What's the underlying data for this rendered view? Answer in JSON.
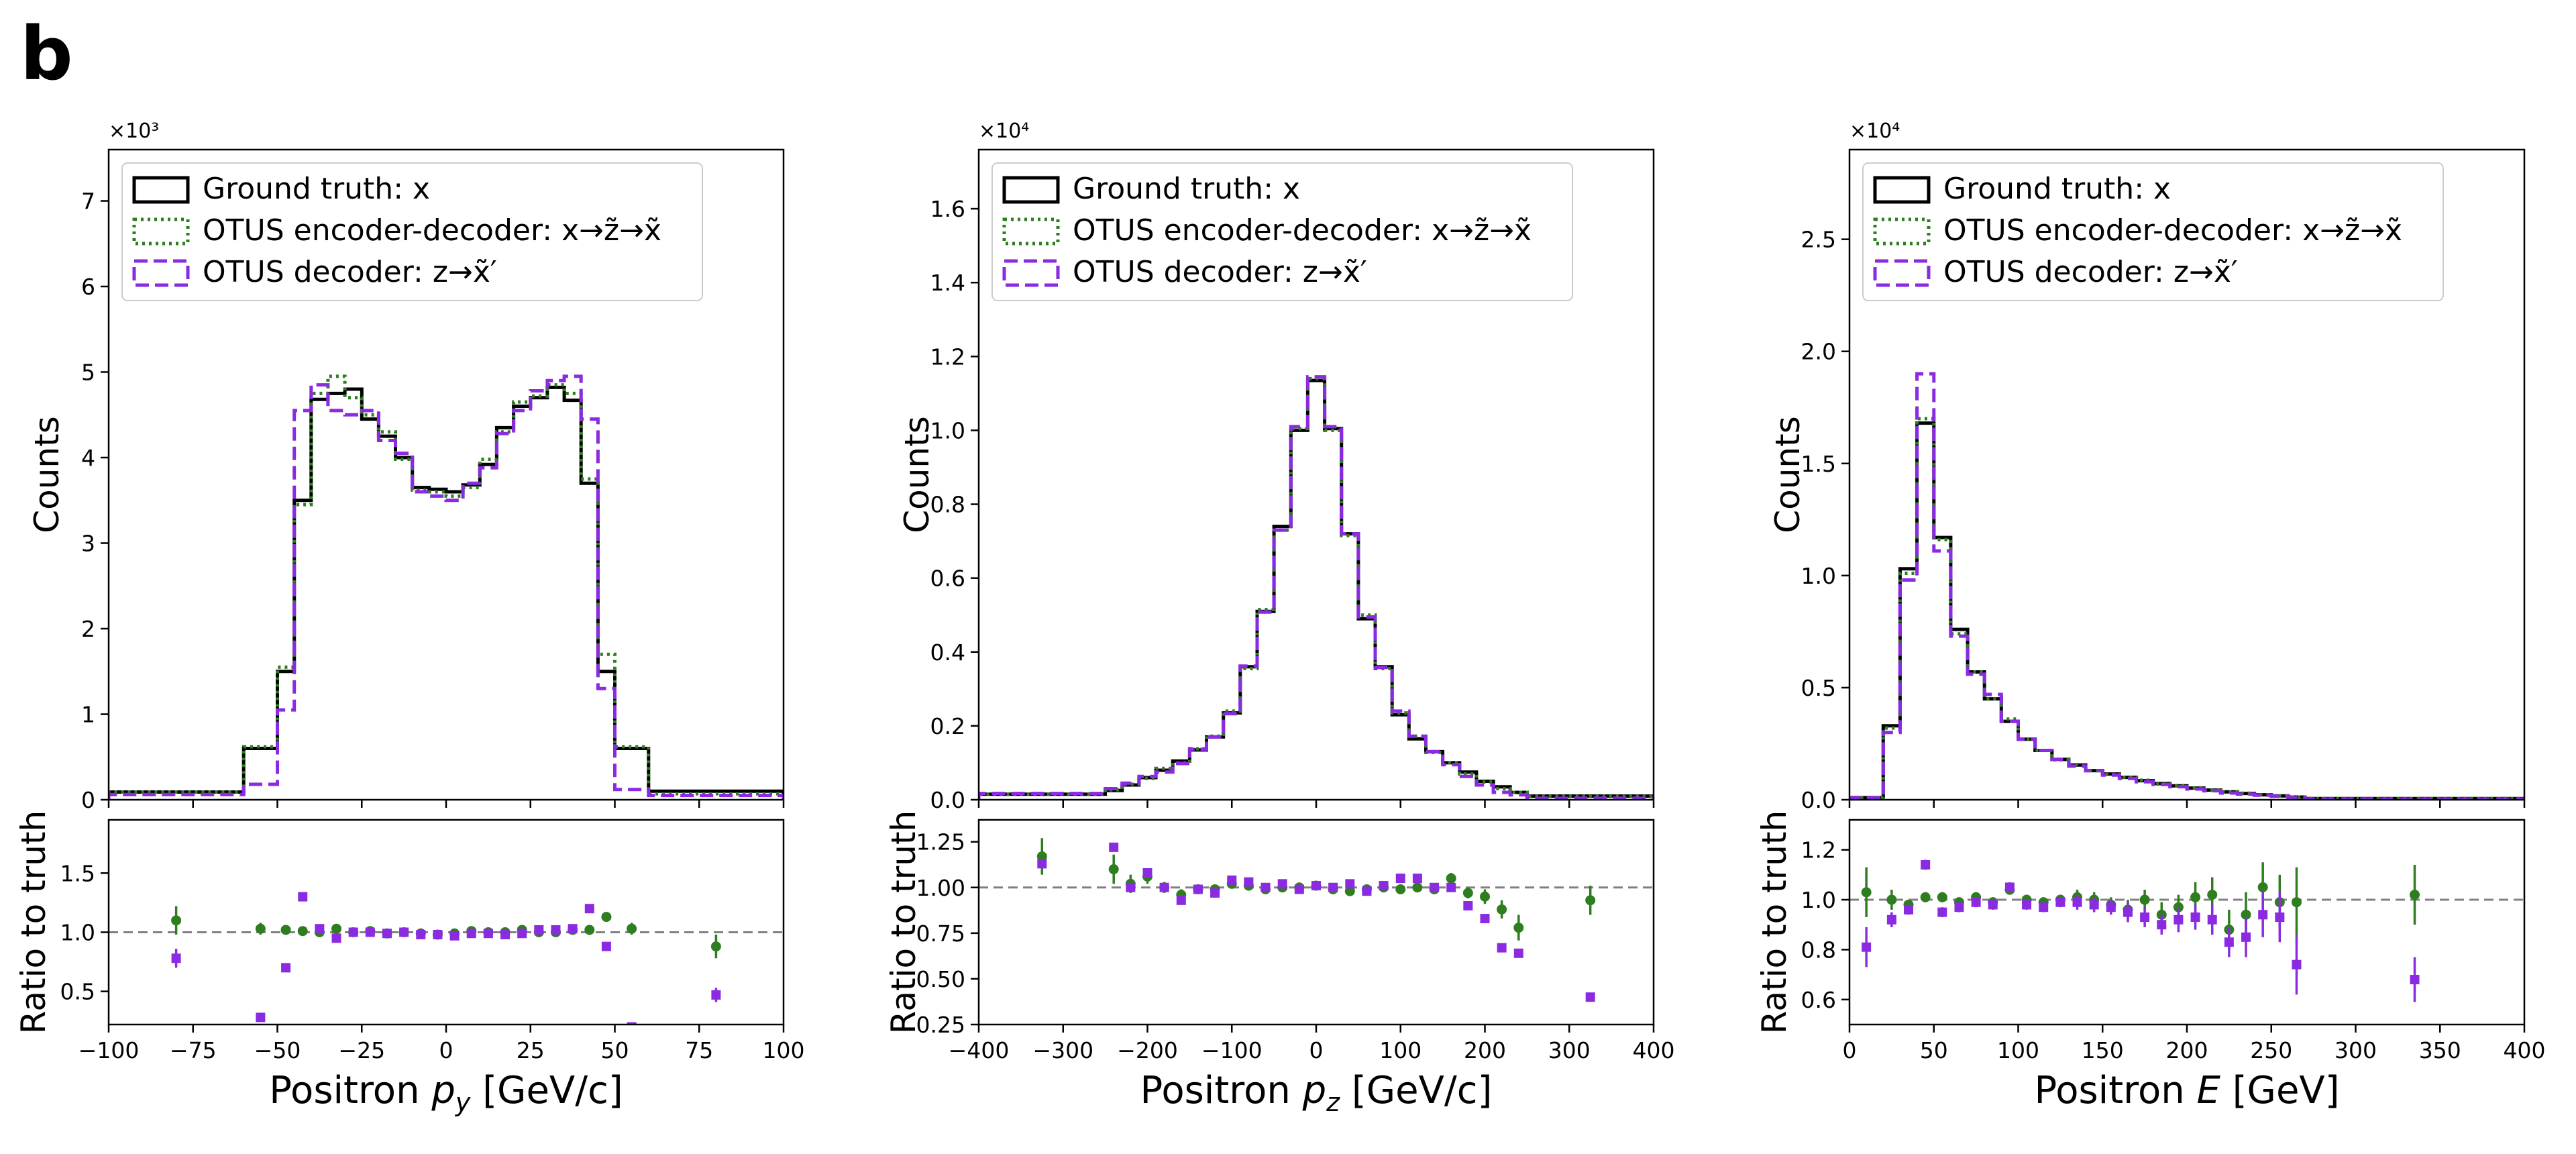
{
  "figure": {
    "panel_letter": "b"
  },
  "legend": {
    "truth": "Ground truth: x",
    "encdec": "OTUS encoder-decoder: x→z̃→x̃",
    "dec": "OTUS decoder: z→x̃′"
  },
  "colors": {
    "truth": "#000000",
    "encdec": "#2e7d1f",
    "dec": "#8a2be2",
    "ref": "#808080"
  },
  "chart_data": [
    {
      "type": "histogram-with-ratio",
      "xlabel": "Positron p_y [GeV/c]",
      "ylabel": "Counts",
      "ratio_ylabel": "Ratio to truth",
      "multiplier": "×10³",
      "xlim": [
        -100,
        100
      ],
      "ylim": [
        0,
        7.6
      ],
      "ratio_ylim": [
        0.22,
        1.95
      ],
      "xticks": [
        -100,
        -75,
        -50,
        -25,
        0,
        25,
        50,
        75,
        100
      ],
      "xtick_labels": [
        "−100",
        "−75",
        "−50",
        "−25",
        "0",
        "25",
        "50",
        "75",
        "100"
      ],
      "yticks": [
        0,
        1,
        2,
        3,
        4,
        5,
        6,
        7
      ],
      "ytick_labels": [
        "0",
        "1",
        "2",
        "3",
        "4",
        "5",
        "6",
        "7"
      ],
      "ratio_yticks": [
        0.5,
        1.0,
        1.5
      ],
      "ratio_ytick_labels": [
        "0.5",
        "1.0",
        "1.5"
      ],
      "edges": [
        -100,
        -60,
        -50,
        -45,
        -40,
        -35,
        -30,
        -25,
        -20,
        -15,
        -10,
        -5,
        0,
        5,
        10,
        15,
        20,
        25,
        30,
        35,
        40,
        45,
        50,
        60,
        100
      ],
      "series": [
        {
          "name": "truth",
          "values": [
            0.09,
            0.6,
            1.5,
            3.5,
            4.68,
            4.75,
            4.8,
            4.45,
            4.25,
            4.0,
            3.65,
            3.63,
            3.6,
            3.68,
            3.92,
            4.35,
            4.6,
            4.7,
            4.82,
            4.67,
            3.7,
            1.5,
            0.6,
            0.1
          ]
        },
        {
          "name": "encdec",
          "values": [
            0.09,
            0.62,
            1.55,
            3.45,
            4.75,
            4.95,
            4.7,
            4.5,
            4.3,
            3.98,
            3.62,
            3.6,
            3.55,
            3.65,
            3.98,
            4.3,
            4.65,
            4.72,
            4.85,
            4.75,
            3.75,
            1.7,
            0.62,
            0.07
          ]
        },
        {
          "name": "dec",
          "values": [
            0.06,
            0.18,
            1.05,
            4.55,
            4.85,
            4.55,
            4.5,
            4.55,
            4.2,
            4.05,
            3.6,
            3.55,
            3.5,
            3.7,
            3.88,
            4.28,
            4.55,
            4.78,
            4.9,
            4.95,
            4.45,
            1.3,
            0.12,
            0.05
          ]
        }
      ],
      "ratio_x": [
        -80,
        -55,
        -47.5,
        -42.5,
        -37.5,
        -32.5,
        -27.5,
        -22.5,
        -17.5,
        -12.5,
        -7.5,
        -2.5,
        2.5,
        7.5,
        12.5,
        17.5,
        22.5,
        27.5,
        32.5,
        37.5,
        42.5,
        47.5,
        55,
        80
      ],
      "ratio_encdec": [
        1.1,
        1.03,
        1.02,
        1.01,
        1.0,
        1.03,
        1.0,
        1.01,
        0.99,
        1.0,
        0.99,
        0.98,
        0.99,
        1.01,
        1.0,
        1.0,
        1.02,
        1.0,
        1.0,
        1.02,
        1.02,
        1.13,
        1.03,
        0.88
      ],
      "ratio_encdec_err": [
        0.12,
        0.05,
        0.03,
        0.02,
        0.02,
        0.02,
        0.02,
        0.02,
        0.02,
        0.02,
        0.02,
        0.02,
        0.02,
        0.02,
        0.02,
        0.02,
        0.02,
        0.02,
        0.02,
        0.02,
        0.02,
        0.03,
        0.05,
        0.1
      ],
      "ratio_dec": [
        0.78,
        0.28,
        0.7,
        1.3,
        1.03,
        0.95,
        1.0,
        1.0,
        0.99,
        1.0,
        0.98,
        0.98,
        0.97,
        0.99,
        0.99,
        0.98,
        0.99,
        1.02,
        1.02,
        1.03,
        1.2,
        0.88,
        0.2,
        0.47
      ],
      "ratio_dec_err": [
        0.08,
        0.03,
        0.03,
        0.02,
        0.02,
        0.02,
        0.02,
        0.02,
        0.02,
        0.02,
        0.02,
        0.02,
        0.02,
        0.02,
        0.02,
        0.02,
        0.02,
        0.02,
        0.02,
        0.02,
        0.02,
        0.03,
        0.03,
        0.06
      ]
    },
    {
      "type": "histogram-with-ratio",
      "xlabel": "Positron p_z [GeV/c]",
      "ylabel": "Counts",
      "ratio_ylabel": "Ratio to truth",
      "multiplier": "×10⁴",
      "xlim": [
        -400,
        400
      ],
      "ylim": [
        0,
        1.76
      ],
      "ratio_ylim": [
        0.25,
        1.37
      ],
      "xticks": [
        -400,
        -300,
        -200,
        -100,
        0,
        100,
        200,
        300,
        400
      ],
      "xtick_labels": [
        "−400",
        "−300",
        "−200",
        "−100",
        "0",
        "100",
        "200",
        "300",
        "400"
      ],
      "yticks": [
        0,
        0.2,
        0.4,
        0.6,
        0.8,
        1.0,
        1.2,
        1.4,
        1.6
      ],
      "ytick_labels": [
        "0.0",
        "0.2",
        "0.4",
        "0.6",
        "0.8",
        "1.0",
        "1.2",
        "1.4",
        "1.6"
      ],
      "ratio_yticks": [
        0.25,
        0.5,
        0.75,
        1.0,
        1.25
      ],
      "ratio_ytick_labels": [
        "0.25",
        "0.50",
        "0.75",
        "1.00",
        "1.25"
      ],
      "edges": [
        -400,
        -250,
        -230,
        -210,
        -190,
        -170,
        -150,
        -130,
        -110,
        -90,
        -70,
        -50,
        -30,
        -10,
        10,
        30,
        50,
        70,
        90,
        110,
        130,
        150,
        170,
        190,
        210,
        230,
        250,
        400
      ],
      "series": [
        {
          "name": "truth",
          "values": [
            0.015,
            0.025,
            0.04,
            0.06,
            0.08,
            0.105,
            0.135,
            0.17,
            0.235,
            0.36,
            0.51,
            0.74,
            1.0,
            1.135,
            1.005,
            0.72,
            0.49,
            0.36,
            0.23,
            0.165,
            0.13,
            0.1,
            0.075,
            0.05,
            0.035,
            0.02,
            0.01
          ]
        },
        {
          "name": "encdec",
          "values": [
            0.015,
            0.027,
            0.042,
            0.058,
            0.085,
            0.1,
            0.138,
            0.172,
            0.24,
            0.355,
            0.515,
            0.73,
            1.005,
            1.14,
            1.0,
            0.715,
            0.5,
            0.355,
            0.235,
            0.172,
            0.128,
            0.1,
            0.07,
            0.048,
            0.03,
            0.02,
            0.009
          ]
        },
        {
          "name": "dec",
          "values": [
            0.017,
            0.03,
            0.045,
            0.063,
            0.075,
            0.098,
            0.137,
            0.17,
            0.233,
            0.362,
            0.508,
            0.73,
            1.01,
            1.145,
            1.01,
            0.72,
            0.495,
            0.358,
            0.24,
            0.172,
            0.13,
            0.095,
            0.063,
            0.04,
            0.02,
            0.013,
            0.004
          ]
        }
      ],
      "ratio_x": [
        -325,
        -240,
        -220,
        -200,
        -180,
        -160,
        -140,
        -120,
        -100,
        -80,
        -60,
        -40,
        -20,
        0,
        20,
        40,
        60,
        80,
        100,
        120,
        140,
        160,
        180,
        200,
        220,
        240,
        325
      ],
      "ratio_encdec": [
        1.17,
        1.1,
        1.02,
        1.06,
        1.0,
        0.96,
        0.99,
        0.99,
        1.02,
        1.01,
        0.99,
        1.0,
        1.0,
        1.01,
        0.99,
        0.98,
        0.99,
        1.0,
        0.99,
        1.0,
        0.99,
        1.05,
        0.97,
        0.95,
        0.88,
        0.78,
        0.93
      ],
      "ratio_encdec_err": [
        0.1,
        0.08,
        0.05,
        0.04,
        0.03,
        0.03,
        0.02,
        0.02,
        0.02,
        0.02,
        0.02,
        0.02,
        0.02,
        0.02,
        0.02,
        0.02,
        0.02,
        0.02,
        0.02,
        0.02,
        0.02,
        0.03,
        0.03,
        0.04,
        0.05,
        0.07,
        0.08
      ],
      "ratio_dec": [
        1.13,
        1.22,
        1.0,
        1.08,
        1.0,
        0.93,
        0.99,
        0.97,
        1.04,
        1.03,
        1.0,
        1.02,
        0.99,
        1.01,
        1.0,
        1.02,
        0.98,
        1.01,
        1.05,
        1.05,
        1.0,
        1.0,
        0.9,
        0.83,
        0.67,
        0.64,
        0.4
      ]
    },
    {
      "type": "histogram-with-ratio",
      "xlabel": "Positron E [GeV]",
      "ylabel": "Counts",
      "ratio_ylabel": "Ratio to truth",
      "multiplier": "×10⁴",
      "xlim": [
        0,
        400
      ],
      "ylim": [
        0,
        2.9
      ],
      "ratio_ylim": [
        0.5,
        1.32
      ],
      "xticks": [
        0,
        50,
        100,
        150,
        200,
        250,
        300,
        350,
        400
      ],
      "xtick_labels": [
        "0",
        "50",
        "100",
        "150",
        "200",
        "250",
        "300",
        "350",
        "400"
      ],
      "yticks": [
        0,
        0.5,
        1.0,
        1.5,
        2.0,
        2.5
      ],
      "ytick_labels": [
        "0.0",
        "0.5",
        "1.0",
        "1.5",
        "2.0",
        "2.5"
      ],
      "ratio_yticks": [
        0.6,
        0.8,
        1.0,
        1.2
      ],
      "ratio_ytick_labels": [
        "0.6",
        "0.8",
        "1.0",
        "1.2"
      ],
      "edges": [
        0,
        20,
        30,
        40,
        50,
        60,
        70,
        80,
        90,
        100,
        110,
        120,
        130,
        140,
        150,
        160,
        170,
        180,
        190,
        200,
        210,
        220,
        230,
        240,
        250,
        260,
        270,
        400
      ],
      "series": [
        {
          "name": "truth",
          "values": [
            0.01,
            0.33,
            1.03,
            1.68,
            1.17,
            0.76,
            0.57,
            0.45,
            0.35,
            0.27,
            0.22,
            0.18,
            0.155,
            0.13,
            0.115,
            0.1,
            0.085,
            0.072,
            0.062,
            0.052,
            0.043,
            0.035,
            0.028,
            0.022,
            0.017,
            0.012,
            0.005
          ]
        },
        {
          "name": "encdec",
          "values": [
            0.01,
            0.32,
            1.01,
            1.7,
            1.16,
            0.74,
            0.57,
            0.45,
            0.36,
            0.27,
            0.22,
            0.178,
            0.157,
            0.13,
            0.113,
            0.1,
            0.087,
            0.07,
            0.063,
            0.053,
            0.042,
            0.034,
            0.029,
            0.022,
            0.017,
            0.012,
            0.005
          ]
        },
        {
          "name": "dec",
          "values": [
            0.01,
            0.3,
            0.98,
            1.9,
            1.11,
            0.73,
            0.56,
            0.47,
            0.35,
            0.27,
            0.22,
            0.18,
            0.15,
            0.13,
            0.11,
            0.095,
            0.08,
            0.068,
            0.058,
            0.048,
            0.04,
            0.03,
            0.025,
            0.02,
            0.016,
            0.009,
            0.003
          ]
        }
      ],
      "ratio_x": [
        10,
        25,
        35,
        45,
        55,
        65,
        75,
        85,
        95,
        105,
        115,
        125,
        135,
        145,
        155,
        165,
        175,
        185,
        195,
        205,
        215,
        225,
        235,
        245,
        255,
        265,
        335
      ],
      "ratio_encdec": [
        1.03,
        1.0,
        0.98,
        1.01,
        1.01,
        0.99,
        1.01,
        0.99,
        1.04,
        1.0,
        0.99,
        1.0,
        1.01,
        1.0,
        0.98,
        0.96,
        1.0,
        0.94,
        0.97,
        1.01,
        1.02,
        0.88,
        0.94,
        1.05,
        0.99,
        0.99,
        1.02
      ],
      "ratio_encdec_err": [
        0.1,
        0.04,
        0.02,
        0.02,
        0.02,
        0.02,
        0.02,
        0.02,
        0.02,
        0.02,
        0.02,
        0.02,
        0.03,
        0.03,
        0.03,
        0.04,
        0.04,
        0.05,
        0.05,
        0.06,
        0.07,
        0.08,
        0.09,
        0.1,
        0.11,
        0.14,
        0.12
      ],
      "ratio_dec": [
        0.81,
        0.92,
        0.96,
        1.14,
        0.95,
        0.97,
        0.99,
        0.98,
        1.05,
        0.98,
        0.97,
        0.99,
        0.99,
        0.98,
        0.97,
        0.95,
        0.93,
        0.9,
        0.92,
        0.93,
        0.92,
        0.83,
        0.85,
        0.94,
        0.93,
        0.74,
        0.68
      ],
      "ratio_dec_err": [
        0.08,
        0.03,
        0.02,
        0.02,
        0.02,
        0.02,
        0.02,
        0.02,
        0.02,
        0.02,
        0.02,
        0.02,
        0.03,
        0.03,
        0.03,
        0.04,
        0.04,
        0.04,
        0.05,
        0.05,
        0.06,
        0.06,
        0.08,
        0.09,
        0.1,
        0.12,
        0.09
      ]
    }
  ]
}
